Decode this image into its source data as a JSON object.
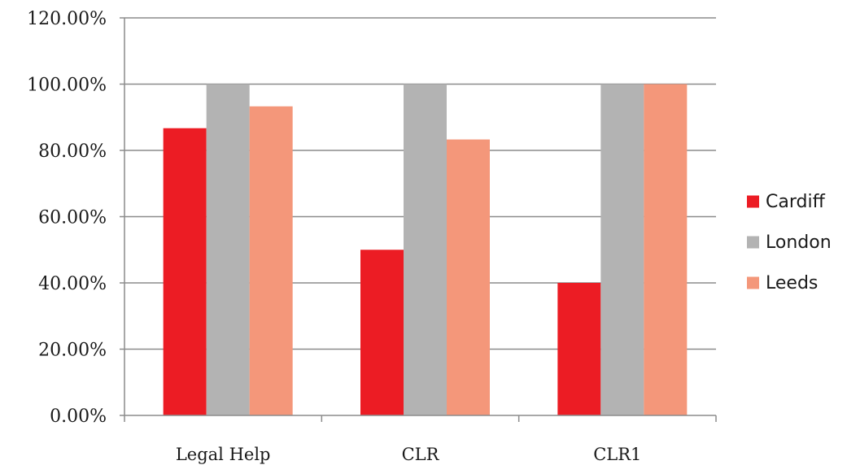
{
  "chart_data": {
    "type": "bar",
    "categories": [
      "Legal Help",
      "CLR",
      "CLR1"
    ],
    "series": [
      {
        "name": "Cardiff",
        "color": "#ec1c24",
        "values": [
          86.7,
          50.0,
          40.0
        ]
      },
      {
        "name": "London",
        "color": "#b3b3b3",
        "values": [
          100.0,
          100.0,
          100.0
        ]
      },
      {
        "name": "Leeds",
        "color": "#f4977a",
        "values": [
          93.3,
          83.3,
          100.0
        ]
      }
    ],
    "ylim": [
      0,
      120
    ],
    "yticks": [
      0,
      20,
      40,
      60,
      80,
      100,
      120
    ],
    "ytick_labels": [
      "0.00%",
      "20.00%",
      "40.00%",
      "60.00%",
      "80.00%",
      "100.00%",
      "120.00%"
    ],
    "grid": true,
    "legend_position": "right",
    "gridline_color": "#8c8c8c"
  }
}
